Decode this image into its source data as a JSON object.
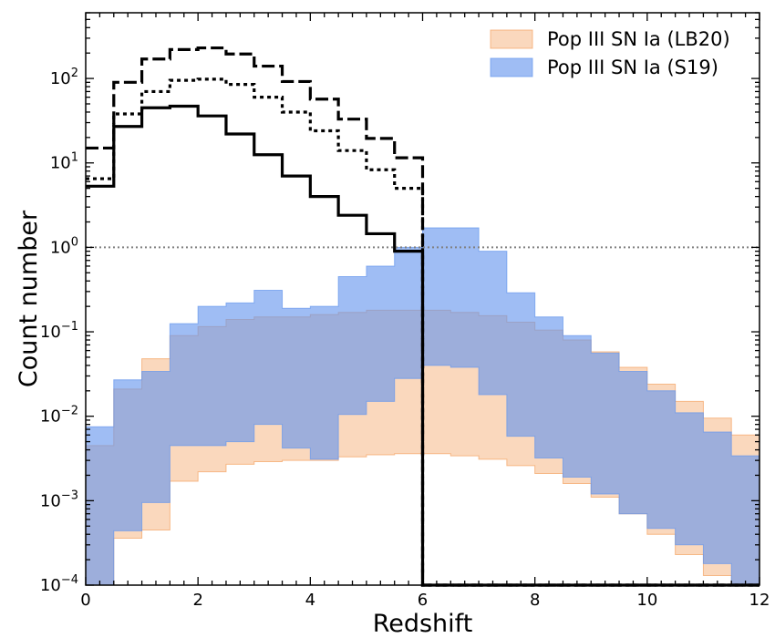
{
  "chart_data": {
    "type": "histogram-step",
    "title": "",
    "xlabel": "Redshift",
    "ylabel": "Count number",
    "xlim": [
      0,
      12
    ],
    "ylim": [
      0.0001,
      600
    ],
    "yscale": "log",
    "x_ticks": [
      0,
      2,
      4,
      6,
      8,
      10,
      12
    ],
    "x_tick_labels": [
      "0",
      "2",
      "4",
      "6",
      "8",
      "10",
      "12"
    ],
    "y_ticks": [
      0.0001,
      0.001,
      0.01,
      0.1,
      1,
      10,
      100
    ],
    "y_tick_labels": [
      {
        "base": "10",
        "exp": "−4"
      },
      {
        "base": "10",
        "exp": "−3"
      },
      {
        "base": "10",
        "exp": "−2"
      },
      {
        "base": "10",
        "exp": "−1"
      },
      {
        "base": "10",
        "exp": "0"
      },
      {
        "base": "10",
        "exp": "1"
      },
      {
        "base": "10",
        "exp": "2"
      }
    ],
    "reference_line": {
      "y": 1,
      "style": "dotted",
      "color": "#808080"
    },
    "bin_edges": [
      0,
      0.5,
      1,
      1.5,
      2,
      2.5,
      3,
      3.5,
      4,
      4.5,
      5,
      5.5,
      6,
      6.5,
      7,
      7.5,
      8,
      8.5,
      9,
      9.5,
      10,
      10.5,
      11,
      11.5,
      12
    ],
    "legend_position": "top-right",
    "bands": [
      {
        "name": "Pop III SN Ia (LB20)",
        "color": "#f4a261",
        "opacity": 0.42,
        "lower": [
          0.0001,
          0.00036,
          0.00045,
          0.0017,
          0.0022,
          0.0027,
          0.0029,
          0.003,
          0.003,
          0.0033,
          0.0035,
          0.0036,
          0.0036,
          0.0034,
          0.0031,
          0.0026,
          0.0021,
          0.0016,
          0.0011,
          0.0007,
          0.0004,
          0.00023,
          0.00013,
          0.0001
        ],
        "upper": [
          0.0045,
          0.021,
          0.048,
          0.09,
          0.115,
          0.14,
          0.15,
          0.15,
          0.16,
          0.17,
          0.18,
          0.18,
          0.18,
          0.17,
          0.155,
          0.13,
          0.105,
          0.08,
          0.058,
          0.038,
          0.024,
          0.015,
          0.0095,
          0.006
        ]
      },
      {
        "name": "Pop III SN Ia (S19)",
        "color": "#6495ed",
        "opacity": 0.62,
        "lower": [
          0.0001,
          0.00044,
          0.00095,
          0.0045,
          0.0045,
          0.005,
          0.008,
          0.0042,
          0.0031,
          0.0105,
          0.015,
          0.028,
          0.04,
          0.038,
          0.018,
          0.0058,
          0.0032,
          0.0019,
          0.0012,
          0.0007,
          0.00047,
          0.0003,
          0.00018,
          0.0001
        ],
        "upper": [
          0.0075,
          0.027,
          0.034,
          0.125,
          0.2,
          0.22,
          0.31,
          0.19,
          0.2,
          0.45,
          0.6,
          1.0,
          1.7,
          1.7,
          0.9,
          0.29,
          0.15,
          0.09,
          0.056,
          0.034,
          0.02,
          0.011,
          0.0065,
          0.0034
        ]
      }
    ],
    "lines": [
      {
        "name": "dashed",
        "style": "dashed",
        "color": "#000000",
        "values": [
          15,
          90,
          170,
          220,
          230,
          195,
          140,
          92,
          57,
          33,
          19.5,
          11.5,
          0.0001,
          0.0001,
          0.0001,
          0.0001,
          0.0001,
          0.0001,
          0.0001,
          0.0001,
          0.0001,
          0.0001,
          0.0001,
          0.0001
        ]
      },
      {
        "name": "dotted",
        "style": "dotted",
        "color": "#000000",
        "values": [
          6.5,
          38,
          70,
          95,
          98,
          85,
          60,
          40,
          24,
          14,
          8.3,
          5,
          0.0001,
          0.0001,
          0.0001,
          0.0001,
          0.0001,
          0.0001,
          0.0001,
          0.0001,
          0.0001,
          0.0001,
          0.0001,
          0.0001
        ]
      },
      {
        "name": "solid",
        "style": "solid",
        "color": "#000000",
        "values": [
          5.3,
          27,
          45,
          47,
          36,
          22,
          12.5,
          7,
          4,
          2.4,
          1.45,
          0.9,
          0.0001,
          0.0001,
          0.0001,
          0.0001,
          0.0001,
          0.0001,
          0.0001,
          0.0001,
          0.0001,
          0.0001,
          0.0001,
          0.0001
        ]
      }
    ]
  }
}
